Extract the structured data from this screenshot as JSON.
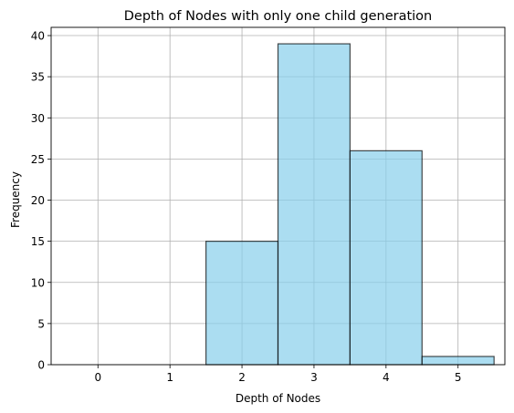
{
  "chart_data": {
    "type": "bar",
    "title": "Depth of Nodes with only one child generation",
    "xlabel": "Depth of Nodes",
    "ylabel": "Frequency",
    "categories": [
      "0",
      "1",
      "2",
      "3",
      "4",
      "5"
    ],
    "x": [
      0,
      1,
      2,
      3,
      4,
      5
    ],
    "values": [
      0,
      0,
      15,
      39,
      26,
      1
    ],
    "bar_width": 1,
    "xlim": [
      -0.65,
      5.65
    ],
    "ylim": [
      0,
      41
    ],
    "xticks": [
      0,
      1,
      2,
      3,
      4,
      5
    ],
    "yticks": [
      0,
      5,
      10,
      15,
      20,
      25,
      30,
      35,
      40
    ],
    "grid": true,
    "bar_color": "#87ceeb",
    "bar_edge_color": "#000000",
    "grid_color": "#b0b0b0"
  }
}
